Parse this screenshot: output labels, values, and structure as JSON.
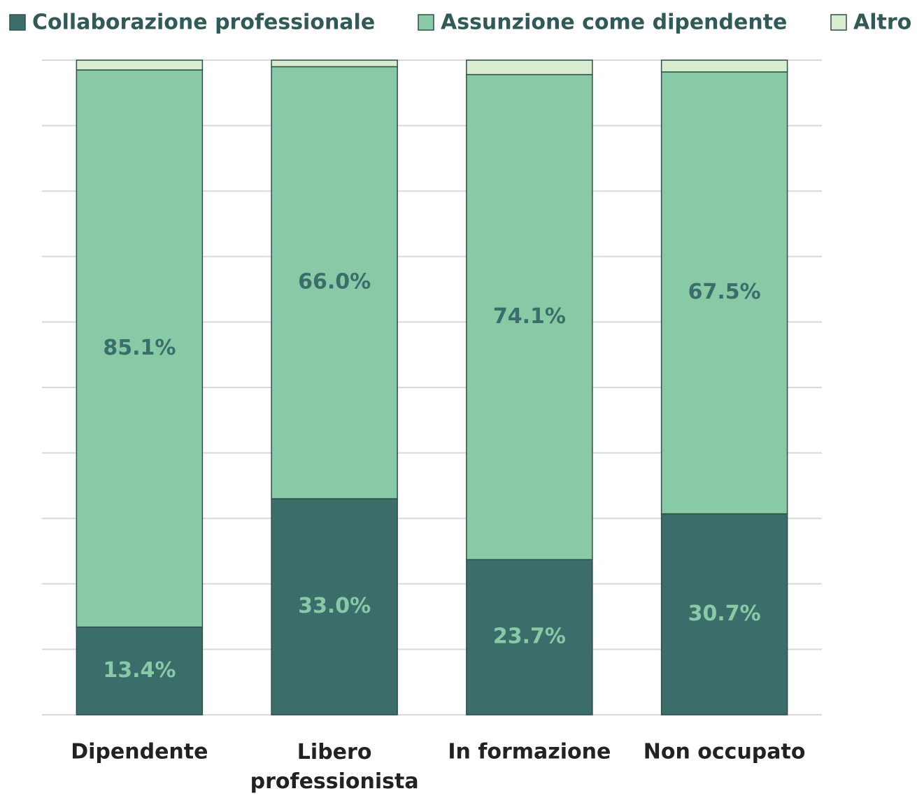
{
  "chart_data": {
    "type": "stacked_bar",
    "categories": [
      "Dipendente",
      "Libero professionista",
      "In formazione",
      "Non occupato"
    ],
    "series": [
      {
        "name": "Collaborazione professionale",
        "color": "#3b6e6a",
        "values": [
          13.4,
          33.0,
          23.7,
          30.7
        ],
        "value_labels": [
          "13.4%",
          "33.0%",
          "23.7%",
          "30.7%"
        ]
      },
      {
        "name": "Assunzione come dipendente",
        "color": "#88c9a6",
        "values": [
          85.1,
          66.0,
          74.1,
          67.5
        ],
        "value_labels": [
          "85.1%",
          "66.0%",
          "74.1%",
          "67.5%"
        ]
      },
      {
        "name": "Altro",
        "color": "#d9ecd0",
        "values": [
          1.5,
          1.0,
          2.2,
          1.8
        ]
      }
    ],
    "ylim": [
      0,
      100
    ],
    "yticks": [
      0,
      10,
      20,
      30,
      40,
      50,
      60,
      70,
      80,
      90,
      100
    ],
    "grid": true
  }
}
